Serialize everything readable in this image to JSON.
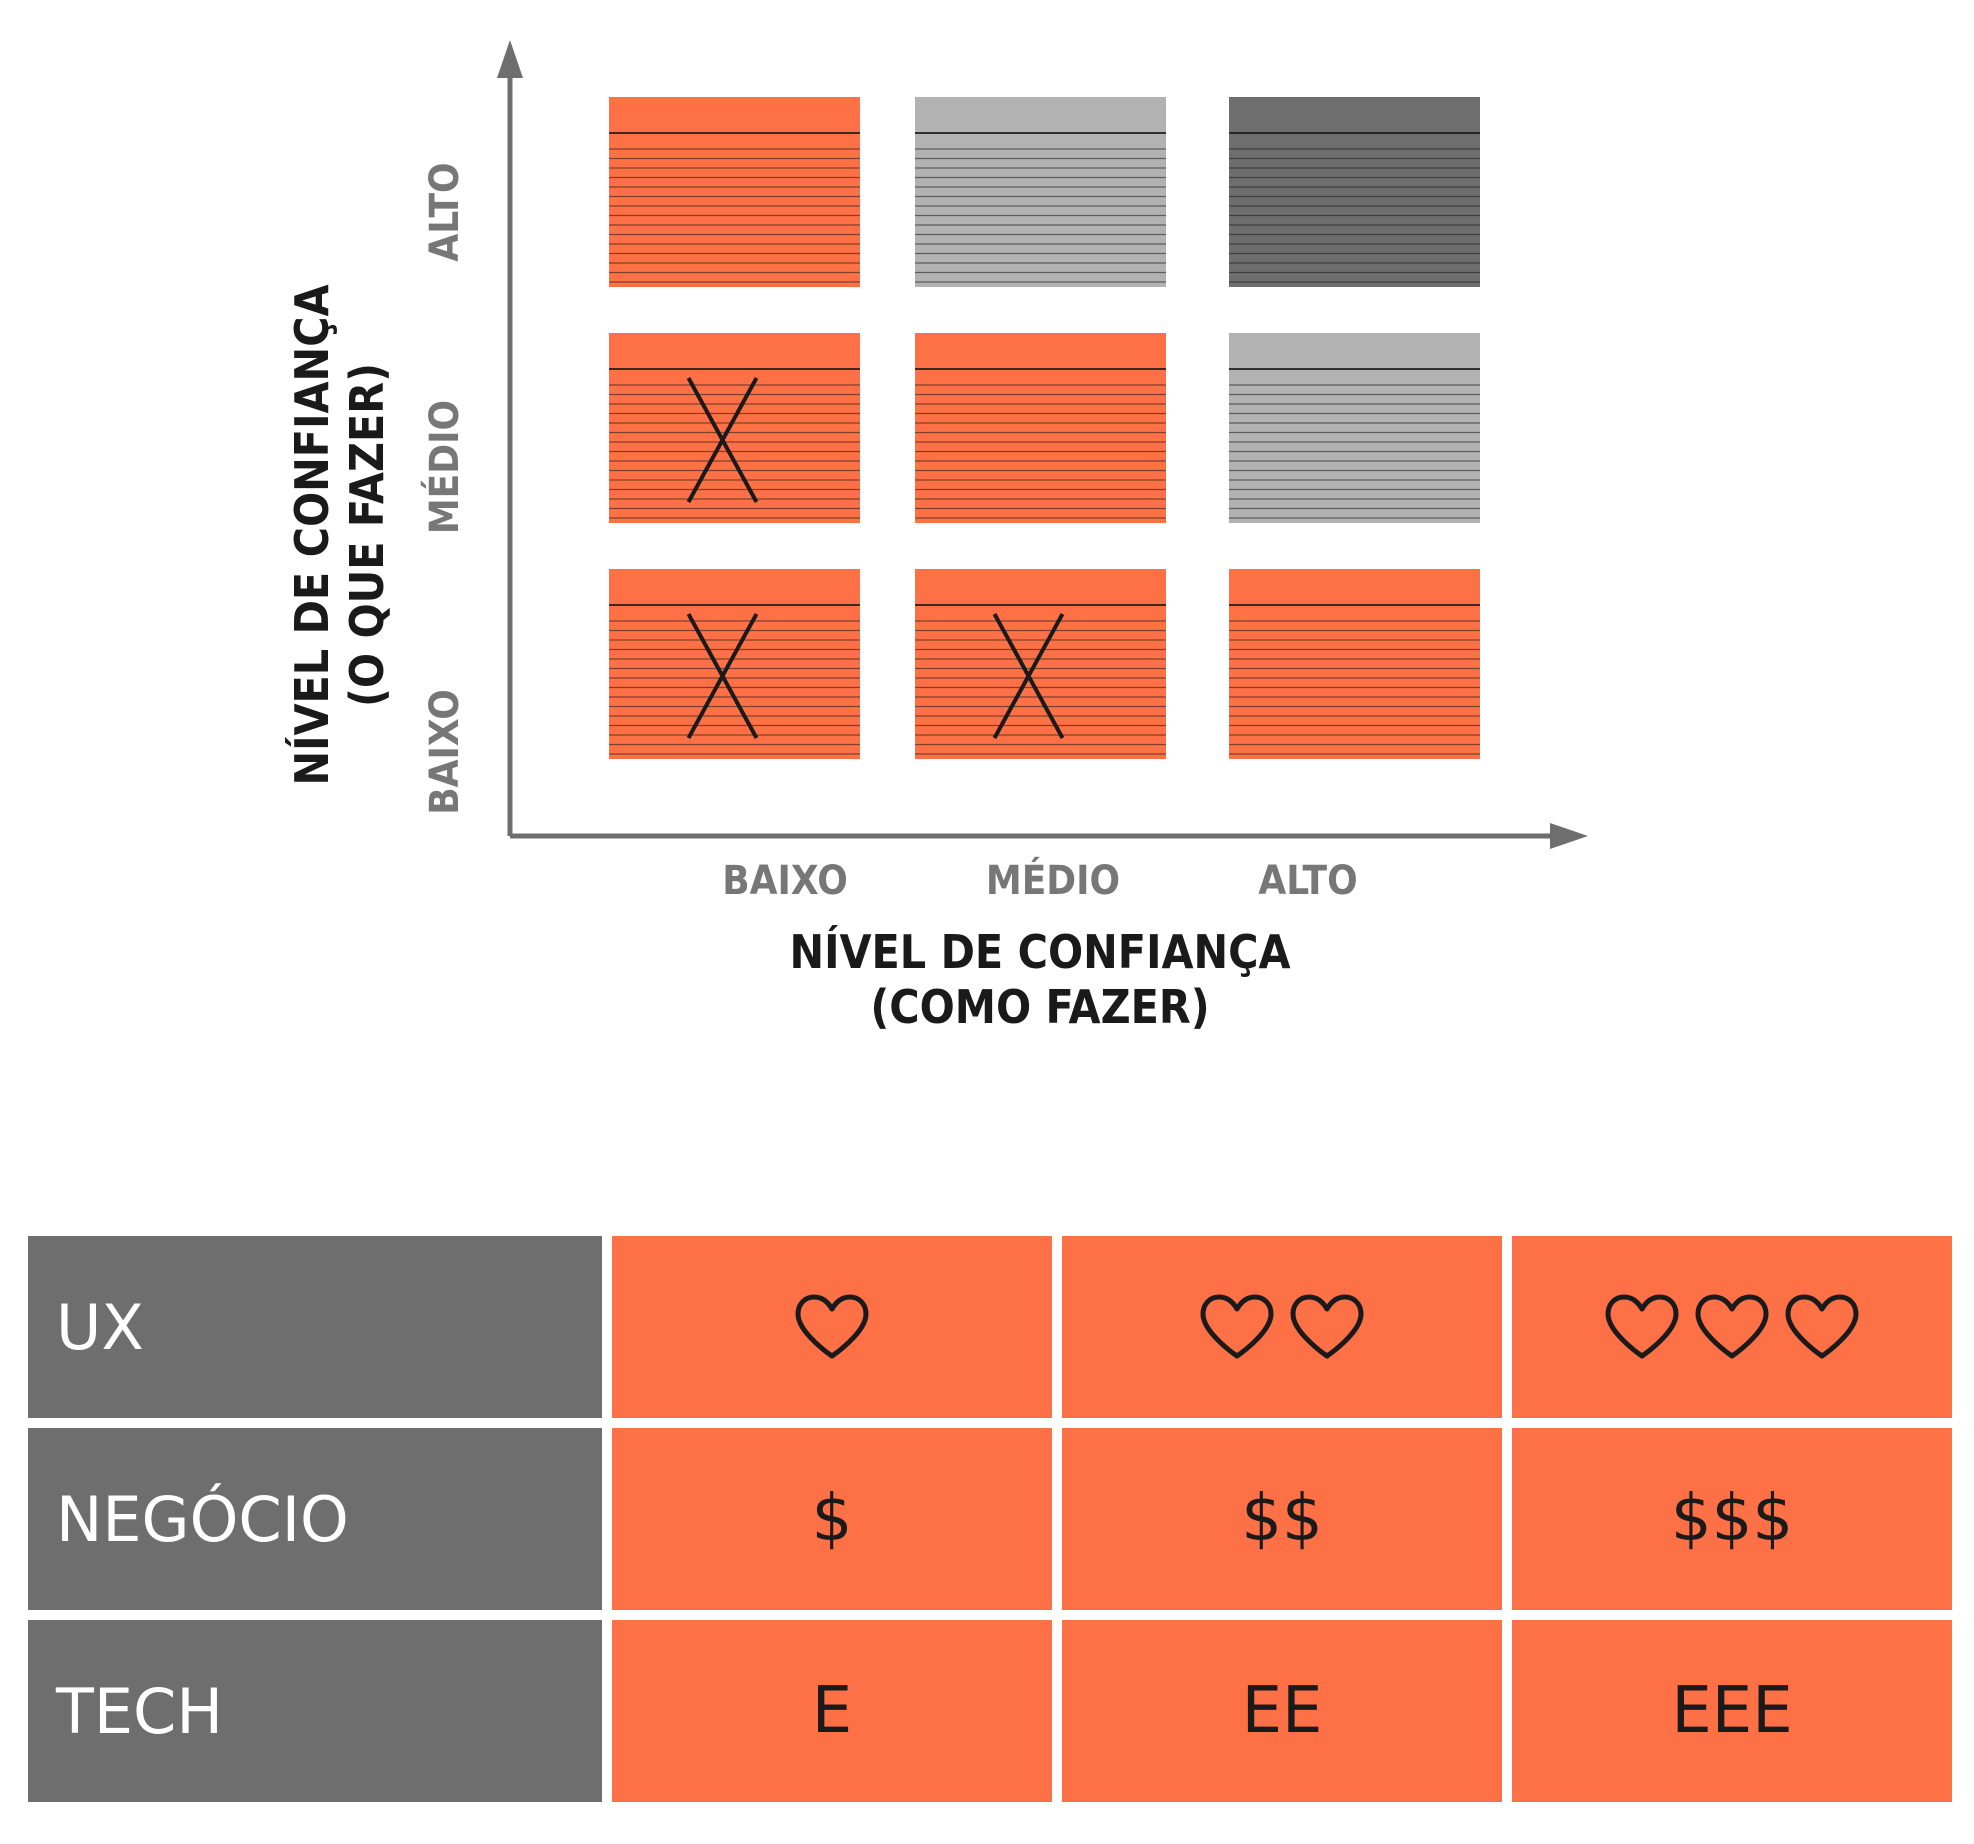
{
  "chart_data": {
    "type": "heatmap",
    "x_axis": {
      "title_line1": "NÍVEL DE CONFIANÇA",
      "title_line2": "(COMO FAZER)",
      "categories": [
        "BAIXO",
        "MÉDIO",
        "ALTO"
      ]
    },
    "y_axis": {
      "title_line1": "NÍVEL DE CONFIANÇA",
      "title_line2": "(O QUE FAZER)",
      "categories": [
        "BAIXO",
        "MÉDIO",
        "ALTO"
      ]
    },
    "cells": [
      {
        "x": "BAIXO",
        "y": "ALTO",
        "color": "orange",
        "crossed": false
      },
      {
        "x": "MÉDIO",
        "y": "ALTO",
        "color": "light-gray",
        "crossed": false
      },
      {
        "x": "ALTO",
        "y": "ALTO",
        "color": "dark-gray",
        "crossed": false
      },
      {
        "x": "BAIXO",
        "y": "MÉDIO",
        "color": "orange",
        "crossed": true
      },
      {
        "x": "MÉDIO",
        "y": "MÉDIO",
        "color": "orange",
        "crossed": false
      },
      {
        "x": "ALTO",
        "y": "MÉDIO",
        "color": "light-gray",
        "crossed": false
      },
      {
        "x": "BAIXO",
        "y": "BAIXO",
        "color": "orange",
        "crossed": true
      },
      {
        "x": "MÉDIO",
        "y": "BAIXO",
        "color": "orange",
        "crossed": true
      },
      {
        "x": "ALTO",
        "y": "BAIXO",
        "color": "orange",
        "crossed": false
      }
    ],
    "colors": {
      "orange": "#fe7045",
      "light-gray": "#b3b2b3",
      "dark-gray": "#6f6e6f",
      "axis": "#6f6e6f",
      "stripe": "#1a1a1a"
    }
  },
  "legend_table": {
    "rows": [
      {
        "label": "UX",
        "values": [
          {
            "hearts": 1
          },
          {
            "hearts": 2
          },
          {
            "hearts": 3
          }
        ],
        "icon": "heart-icon"
      },
      {
        "label": "NEGÓCIO",
        "values": [
          "$",
          "$$",
          "$$$"
        ]
      },
      {
        "label": "TECH",
        "values": [
          "E",
          "EE",
          "EEE"
        ]
      }
    ],
    "colors": {
      "label_bg": "#6f6e6f",
      "cell_bg": "#fe7045"
    }
  }
}
